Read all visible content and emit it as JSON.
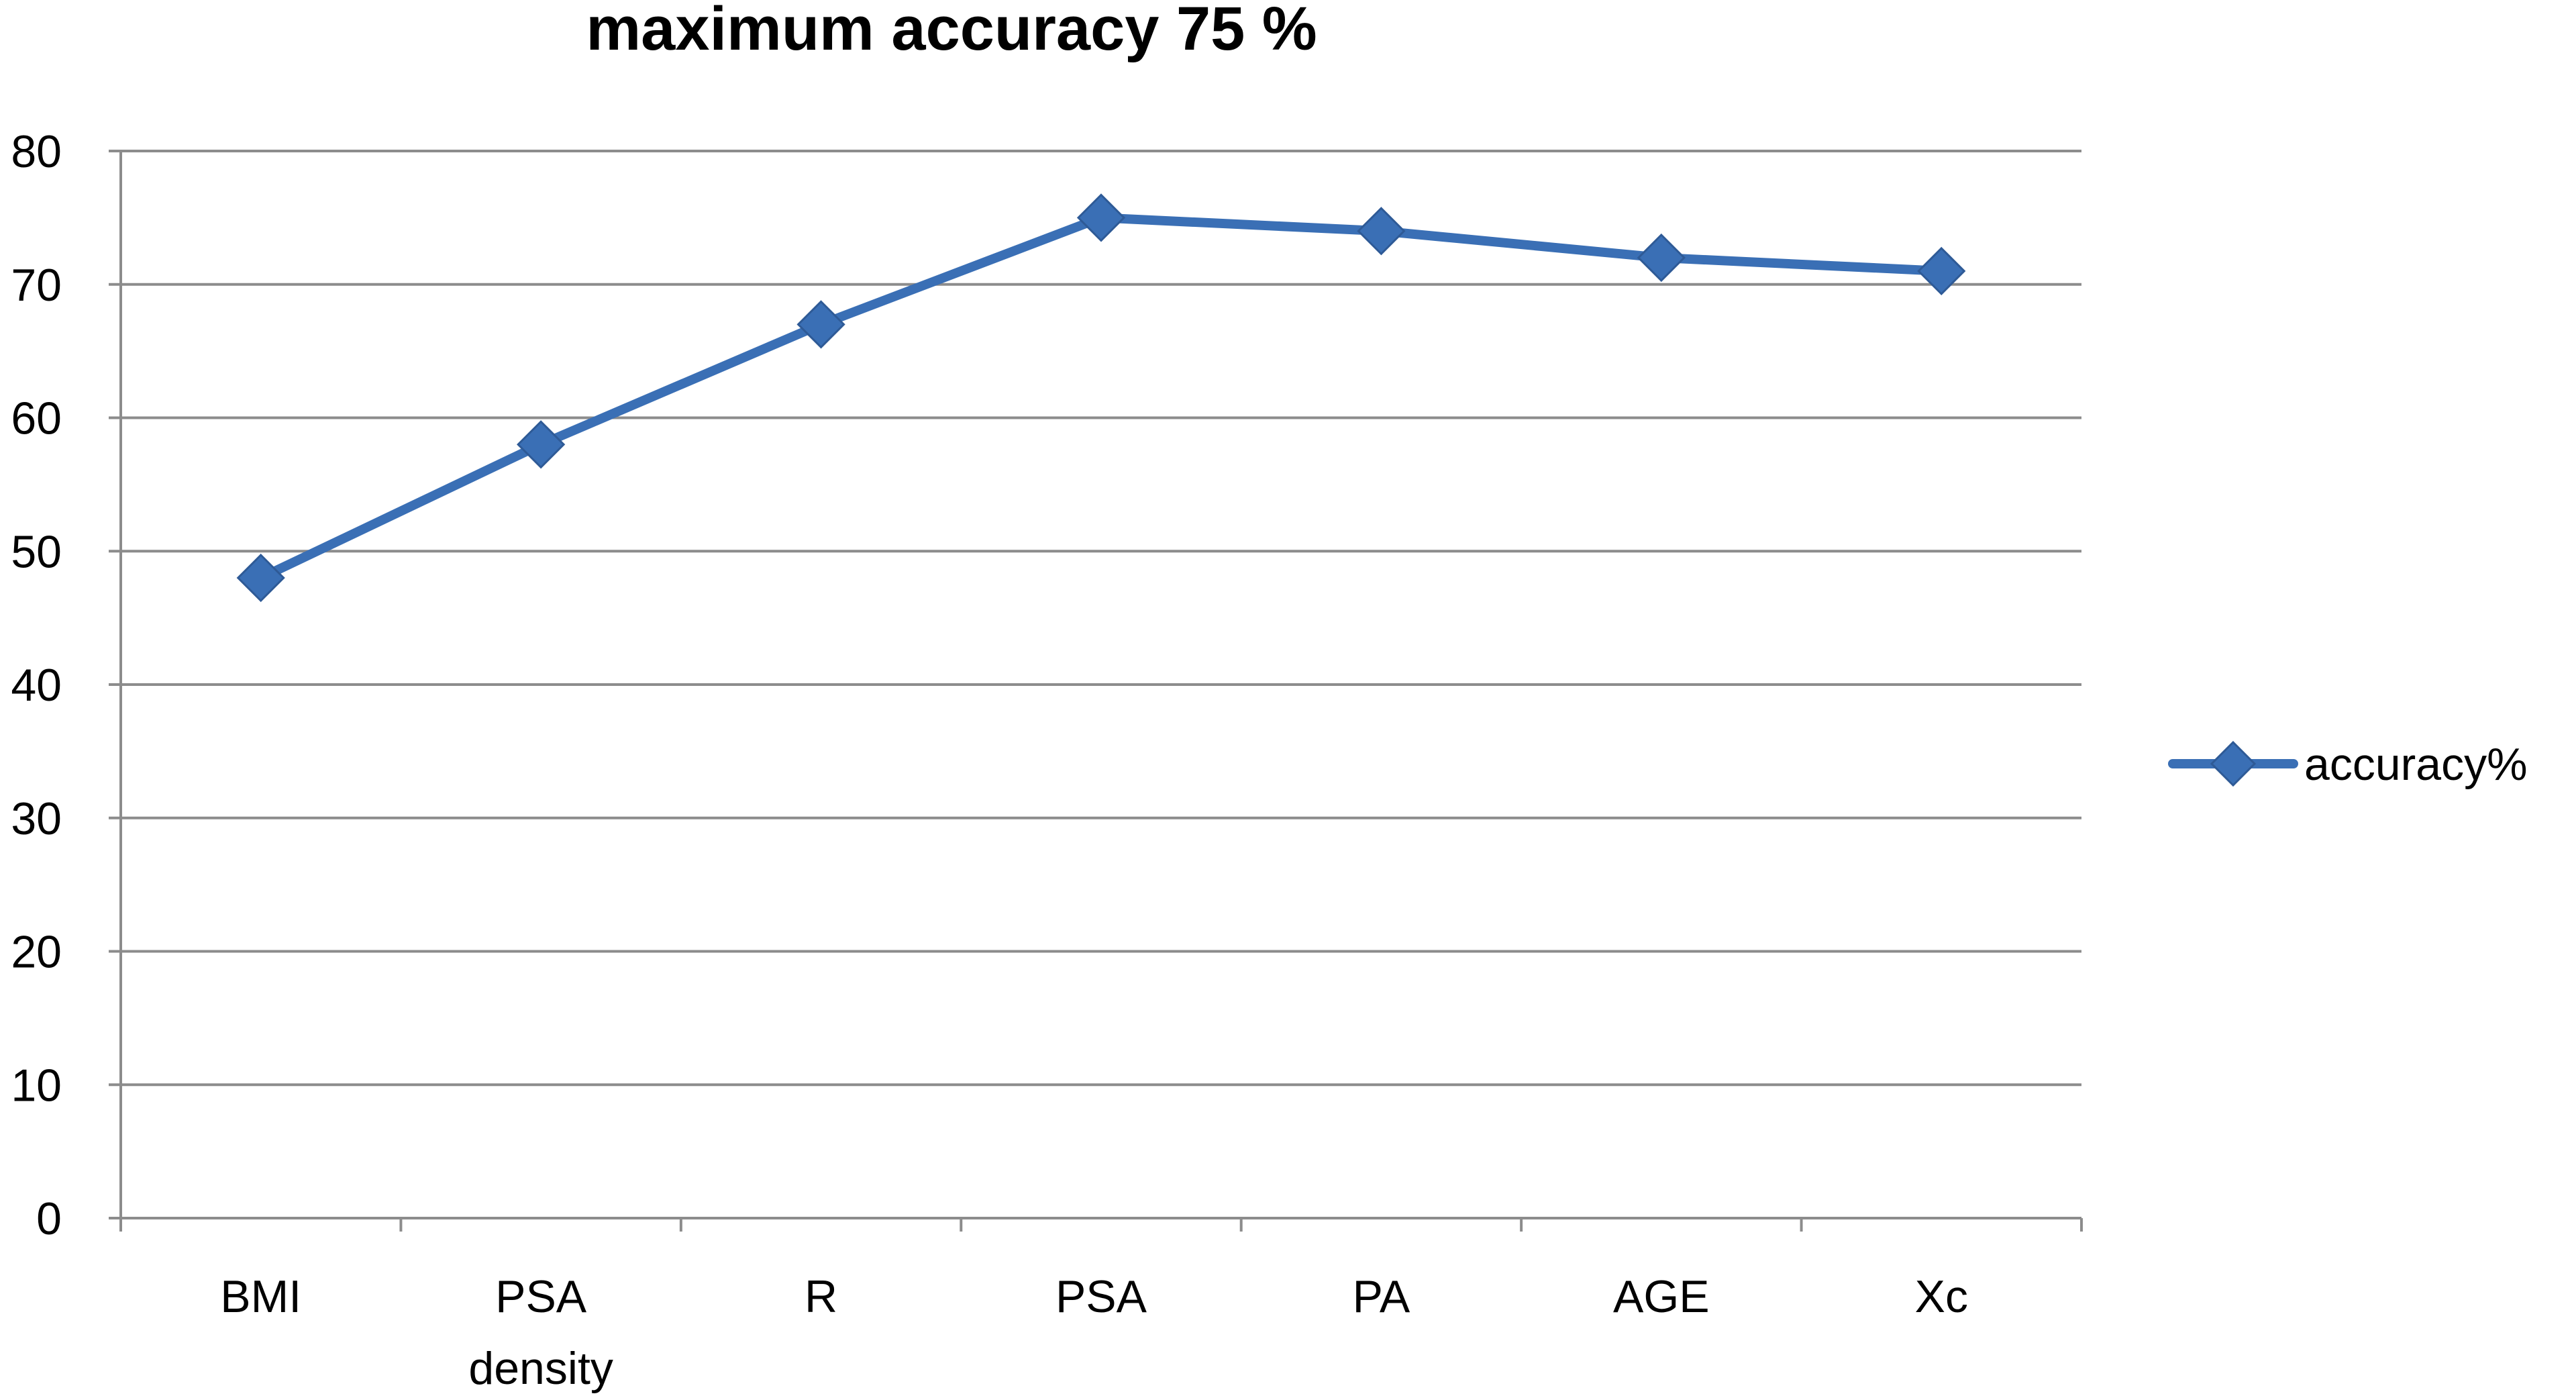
{
  "chart_data": {
    "type": "line",
    "title": "maximum accuracy 75 %",
    "xlabel": "",
    "ylabel": "",
    "categories": [
      [
        "BMI"
      ],
      [
        "PSA",
        "density"
      ],
      [
        "R"
      ],
      [
        "PSA"
      ],
      [
        "PA"
      ],
      [
        "AGE"
      ],
      [
        "Xc"
      ]
    ],
    "series": [
      {
        "name": "accuracy%",
        "values": [
          48,
          58,
          67,
          75,
          74,
          72,
          71
        ],
        "color": "#3a6fb5",
        "marker": "diamond"
      }
    ],
    "ylim": [
      0,
      80
    ],
    "yticks": [
      0,
      10,
      20,
      30,
      40,
      50,
      60,
      70,
      80
    ],
    "grid": true,
    "legend_position": "right"
  }
}
